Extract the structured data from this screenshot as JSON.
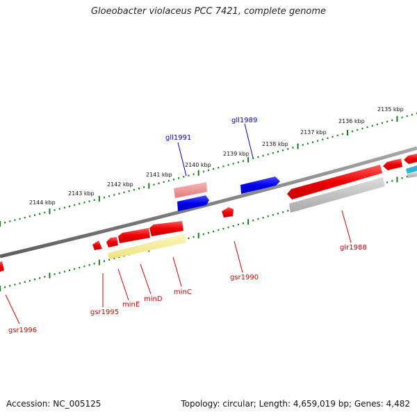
{
  "title": "Gloeobacter violaceus PCC 7421, complete genome",
  "footer": {
    "accession": "Accession: NC_005125",
    "summary": "Topology: circular; Length: 4,659,019 bp; Genes: 4,482"
  },
  "colors": {
    "forward_label": "#0000cc",
    "reverse_label": "#cc0000",
    "tick": "#1a7a1a",
    "backbone": "#777777"
  },
  "tick_labels": [
    {
      "id": "2135",
      "text": "2135 kbp"
    },
    {
      "id": "2136",
      "text": "2136 kbp"
    },
    {
      "id": "2137",
      "text": "2137 kbp"
    },
    {
      "id": "2138",
      "text": "2138 kbp"
    },
    {
      "id": "2139",
      "text": "2139 kbp"
    },
    {
      "id": "2140",
      "text": "2140 kbp"
    },
    {
      "id": "2141",
      "text": "2141 kbp"
    },
    {
      "id": "2142",
      "text": "2142 kbp"
    },
    {
      "id": "2143",
      "text": "2143 kbp"
    },
    {
      "id": "2144",
      "text": "2144 kbp"
    }
  ],
  "gene_labels": [
    {
      "id": "gll1991",
      "text": "gll1991",
      "strand": "forward"
    },
    {
      "id": "gll1989",
      "text": "gll1989",
      "strand": "forward"
    },
    {
      "id": "glr1988",
      "text": "glr1988",
      "strand": "reverse"
    },
    {
      "id": "gsr1990",
      "text": "gsr1990",
      "strand": "reverse"
    },
    {
      "id": "minC",
      "text": "minC",
      "strand": "reverse"
    },
    {
      "id": "minD",
      "text": "minD",
      "strand": "reverse"
    },
    {
      "id": "minE",
      "text": "minE",
      "strand": "reverse"
    },
    {
      "id": "gsr1995",
      "text": "gsr1995",
      "strand": "reverse"
    },
    {
      "id": "gsr1996",
      "text": "gsr1996",
      "strand": "reverse"
    }
  ]
}
